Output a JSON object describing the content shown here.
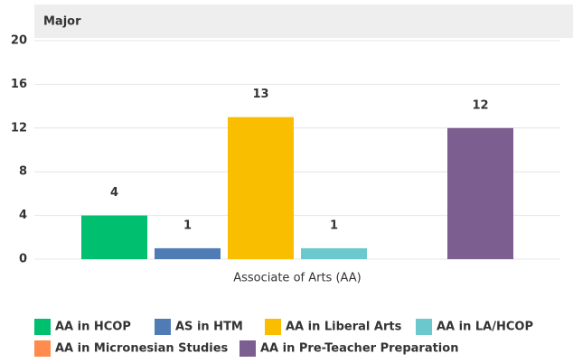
{
  "header": "Major",
  "chart_data": {
    "type": "bar",
    "categories": [
      "Associate of Arts (AA)"
    ],
    "series": [
      {
        "name": "AA in HCOP",
        "color": "#00bf6f",
        "values": [
          4
        ]
      },
      {
        "name": "AS in HTM",
        "color": "#507cb6",
        "values": [
          1
        ]
      },
      {
        "name": "AA in Liberal Arts",
        "color": "#f9be00",
        "values": [
          13
        ]
      },
      {
        "name": "AA in LA/HCOP",
        "color": "#6bc8cd",
        "values": [
          1
        ]
      },
      {
        "name": "AA in Micronesian Studies",
        "color": "#ff8b4f",
        "values": [
          0
        ]
      },
      {
        "name": "AA in Pre-Teacher Preparation",
        "color": "#7d5e90",
        "values": [
          12
        ]
      }
    ],
    "ylim": [
      0,
      20
    ],
    "yticks": [
      0,
      4,
      8,
      12,
      16,
      20
    ],
    "grid": true,
    "legend": "bottom"
  }
}
